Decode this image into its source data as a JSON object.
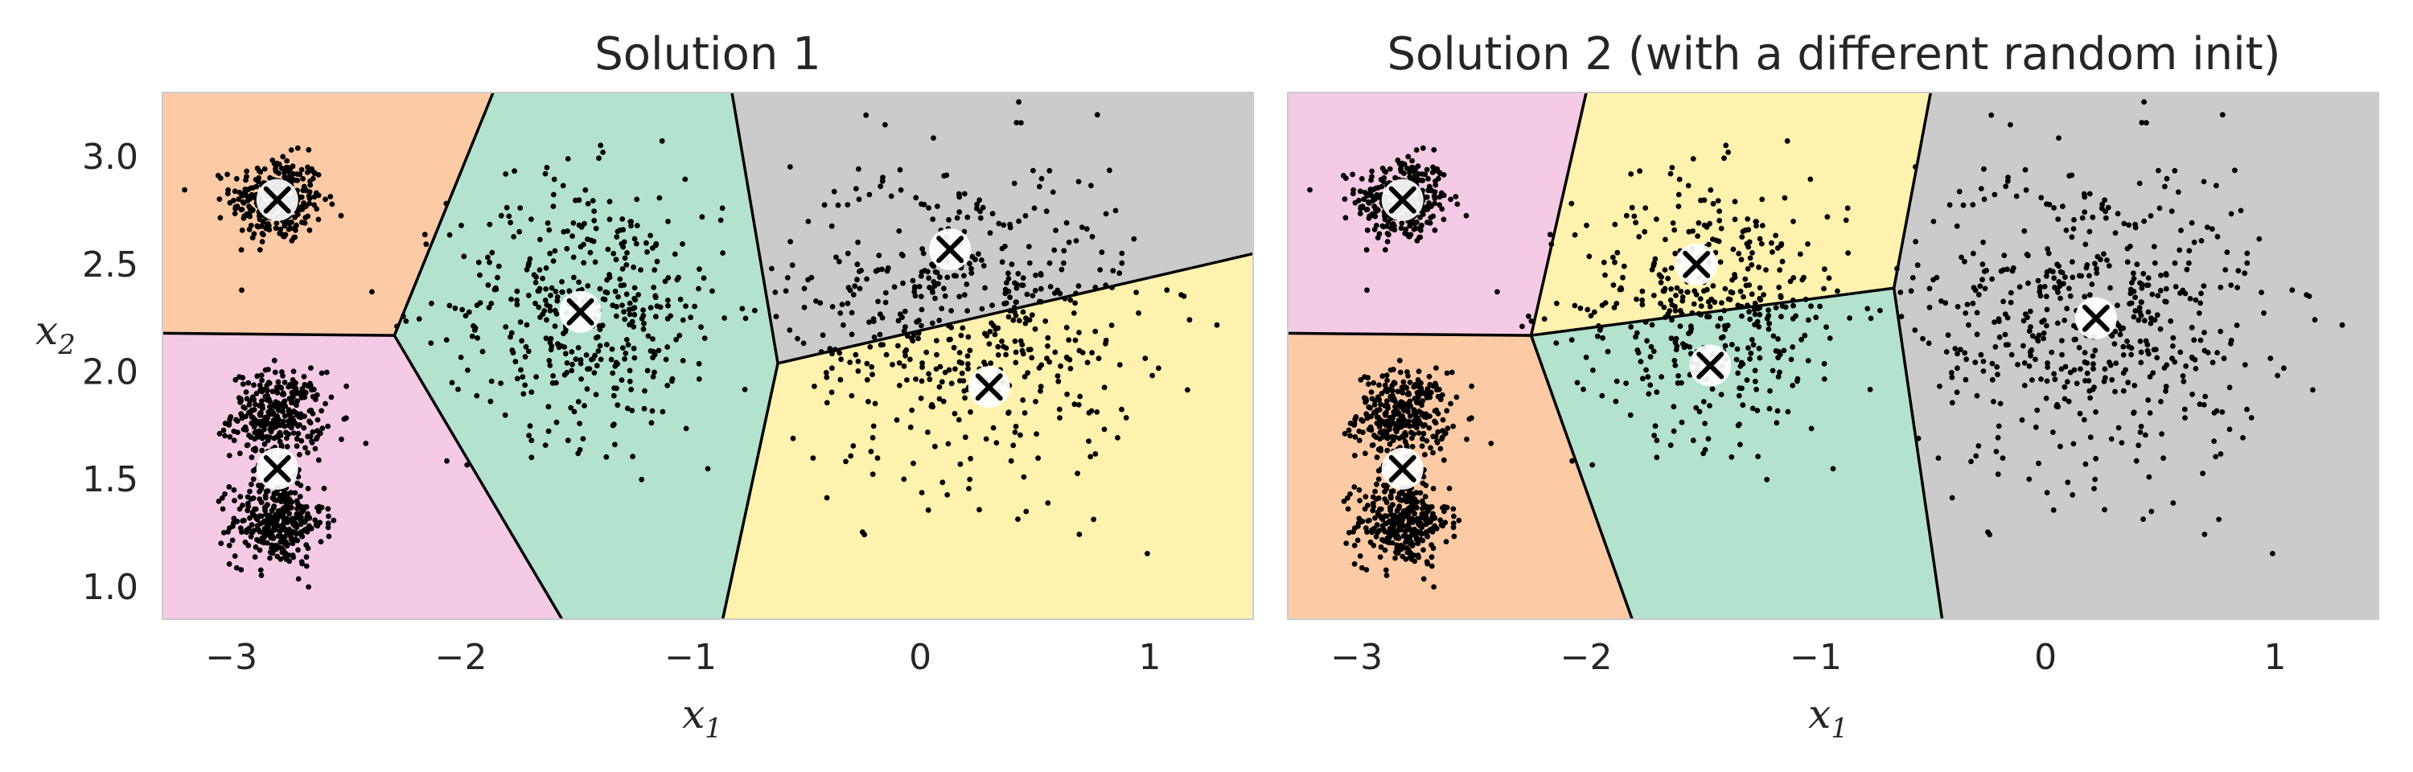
{
  "chart_data": [
    {
      "type": "scatter",
      "title": "Solution 1",
      "xlabel": "x",
      "xlabel_sub": "1",
      "ylabel": "x",
      "ylabel_sub": "2",
      "xlim": [
        -3.3,
        1.45
      ],
      "ylim": [
        0.85,
        3.3
      ],
      "xticks": [
        -3,
        -2,
        -1,
        0,
        1
      ],
      "yticks": [
        1.0,
        1.5,
        2.0,
        2.5,
        3.0
      ],
      "grid": false,
      "blobs": [
        {
          "cx": -2.8,
          "cy": 2.8,
          "sx": 0.1,
          "sy": 0.1,
          "n": 320
        },
        {
          "cx": -2.8,
          "cy": 1.8,
          "sx": 0.1,
          "sy": 0.1,
          "n": 320
        },
        {
          "cx": -2.8,
          "cy": 1.3,
          "sx": 0.1,
          "sy": 0.1,
          "n": 320
        },
        {
          "cx": -1.45,
          "cy": 2.3,
          "sx": 0.3,
          "sy": 0.3,
          "n": 420
        },
        {
          "cx": 0.2,
          "cy": 2.25,
          "sx": 0.38,
          "sy": 0.38,
          "n": 520
        }
      ],
      "regions": [
        {
          "color": "#fdcaa6",
          "polygon": [
            [
              -3.3,
              3.3
            ],
            [
              -1.86,
              3.3
            ],
            [
              -2.29,
              2.17
            ],
            [
              -3.3,
              2.18
            ]
          ]
        },
        {
          "color": "#b3e2cd",
          "polygon": [
            [
              -1.86,
              3.3
            ],
            [
              -0.82,
              3.3
            ],
            [
              -0.62,
              2.04
            ],
            [
              -0.86,
              0.85
            ],
            [
              -1.56,
              0.85
            ],
            [
              -2.29,
              2.17
            ]
          ]
        },
        {
          "color": "#cbcbcb",
          "polygon": [
            [
              -0.82,
              3.3
            ],
            [
              1.45,
              3.3
            ],
            [
              1.45,
              2.55
            ],
            [
              -0.62,
              2.04
            ]
          ]
        },
        {
          "color": "#fff2ae",
          "polygon": [
            [
              -0.62,
              2.04
            ],
            [
              1.45,
              2.55
            ],
            [
              1.45,
              0.85
            ],
            [
              -0.86,
              0.85
            ]
          ]
        },
        {
          "color": "#f4cae4",
          "polygon": [
            [
              -3.3,
              2.18
            ],
            [
              -2.29,
              2.17
            ],
            [
              -1.56,
              0.85
            ],
            [
              -3.3,
              0.85
            ]
          ]
        }
      ],
      "boundaries": [
        [
          [
            -3.3,
            2.18
          ],
          [
            -2.29,
            2.17
          ]
        ],
        [
          [
            -1.86,
            3.3
          ],
          [
            -2.29,
            2.17
          ]
        ],
        [
          [
            -2.29,
            2.17
          ],
          [
            -1.56,
            0.85
          ]
        ],
        [
          [
            -0.82,
            3.3
          ],
          [
            -0.62,
            2.04
          ]
        ],
        [
          [
            -0.62,
            2.04
          ],
          [
            -0.86,
            0.85
          ]
        ],
        [
          [
            -0.62,
            2.04
          ],
          [
            1.45,
            2.55
          ]
        ]
      ],
      "centroids": [
        {
          "x": -2.8,
          "y": 2.8
        },
        {
          "x": -2.8,
          "y": 1.55
        },
        {
          "x": -1.48,
          "y": 2.28
        },
        {
          "x": 0.13,
          "y": 2.57
        },
        {
          "x": 0.3,
          "y": 1.93
        }
      ]
    },
    {
      "type": "scatter",
      "title": "Solution 2 (with a different random init)",
      "xlabel": "x",
      "xlabel_sub": "1",
      "xlim": [
        -3.3,
        1.45
      ],
      "ylim": [
        0.85,
        3.3
      ],
      "xticks": [
        -3,
        -2,
        -1,
        0,
        1
      ],
      "grid": false,
      "blobs": [
        {
          "cx": -2.8,
          "cy": 2.8,
          "sx": 0.1,
          "sy": 0.1,
          "n": 320
        },
        {
          "cx": -2.8,
          "cy": 1.8,
          "sx": 0.1,
          "sy": 0.1,
          "n": 320
        },
        {
          "cx": -2.8,
          "cy": 1.3,
          "sx": 0.1,
          "sy": 0.1,
          "n": 320
        },
        {
          "cx": -1.45,
          "cy": 2.3,
          "sx": 0.3,
          "sy": 0.3,
          "n": 420
        },
        {
          "cx": 0.2,
          "cy": 2.25,
          "sx": 0.38,
          "sy": 0.38,
          "n": 520
        }
      ],
      "regions": [
        {
          "color": "#f4cae4",
          "polygon": [
            [
              -3.3,
              3.3
            ],
            [
              -2.0,
              3.3
            ],
            [
              -2.24,
              2.17
            ],
            [
              -3.3,
              2.18
            ]
          ]
        },
        {
          "color": "#fff2ae",
          "polygon": [
            [
              -2.0,
              3.3
            ],
            [
              -0.5,
              3.3
            ],
            [
              -0.66,
              2.39
            ],
            [
              -2.24,
              2.17
            ]
          ]
        },
        {
          "color": "#cbcbcb",
          "polygon": [
            [
              -0.5,
              3.3
            ],
            [
              1.45,
              3.3
            ],
            [
              1.45,
              0.85
            ],
            [
              -0.45,
              0.85
            ],
            [
              -0.66,
              2.39
            ]
          ]
        },
        {
          "color": "#b3e2cd",
          "polygon": [
            [
              -2.24,
              2.17
            ],
            [
              -0.66,
              2.39
            ],
            [
              -0.45,
              0.85
            ],
            [
              -1.8,
              0.85
            ]
          ]
        },
        {
          "color": "#fdcaa6",
          "polygon": [
            [
              -3.3,
              2.18
            ],
            [
              -2.24,
              2.17
            ],
            [
              -1.8,
              0.85
            ],
            [
              -3.3,
              0.85
            ]
          ]
        }
      ],
      "boundaries": [
        [
          [
            -3.3,
            2.18
          ],
          [
            -2.24,
            2.17
          ]
        ],
        [
          [
            -2.0,
            3.3
          ],
          [
            -2.24,
            2.17
          ]
        ],
        [
          [
            -2.24,
            2.17
          ],
          [
            -0.66,
            2.39
          ]
        ],
        [
          [
            -0.5,
            3.3
          ],
          [
            -0.66,
            2.39
          ]
        ],
        [
          [
            -0.66,
            2.39
          ],
          [
            -0.45,
            0.85
          ]
        ],
        [
          [
            -2.24,
            2.17
          ],
          [
            -1.8,
            0.85
          ]
        ]
      ],
      "centroids": [
        {
          "x": -2.8,
          "y": 2.8
        },
        {
          "x": -2.8,
          "y": 1.55
        },
        {
          "x": -1.52,
          "y": 2.5
        },
        {
          "x": -1.46,
          "y": 2.03
        },
        {
          "x": 0.22,
          "y": 2.25
        }
      ]
    }
  ]
}
